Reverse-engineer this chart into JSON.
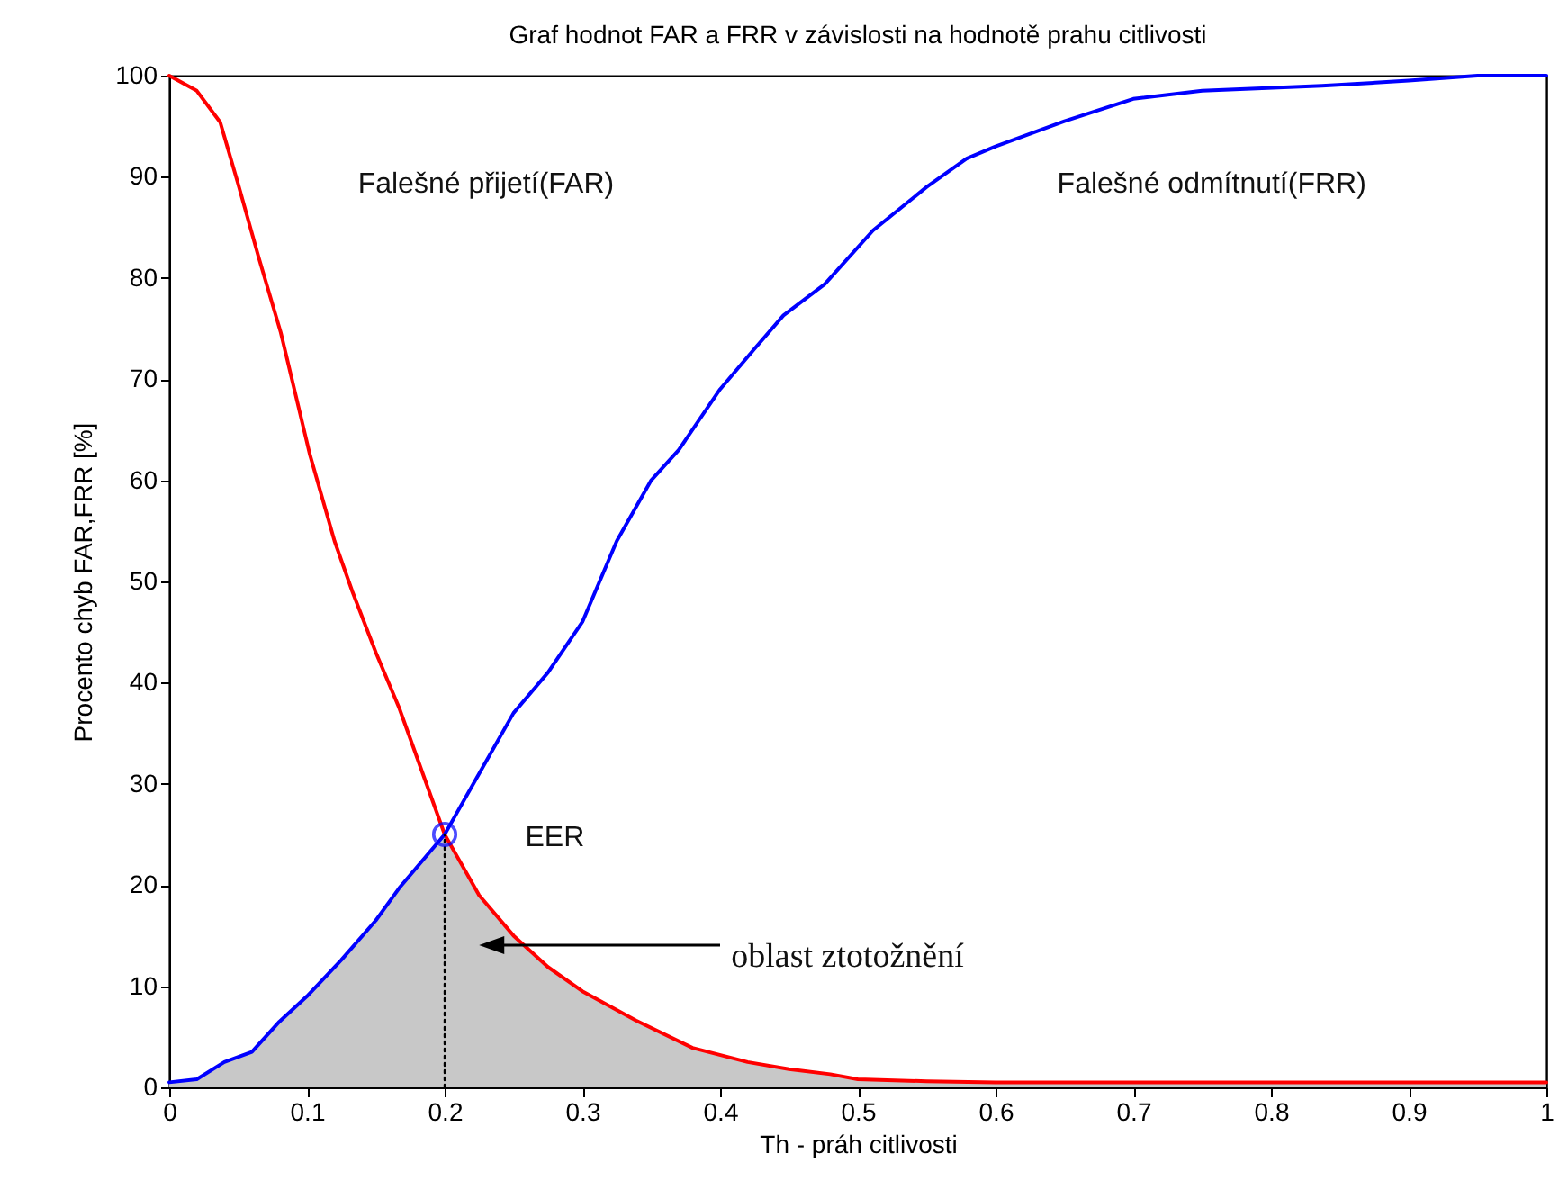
{
  "chart_data": {
    "type": "line",
    "title": "Graf hodnot FAR a FRR v závislosti na hodnotě prahu citlivosti",
    "xlabel": "Th - práh citlivosti",
    "ylabel": "Procento chyb FAR,FRR [%]",
    "xlim": [
      0,
      1
    ],
    "ylim": [
      0,
      100
    ],
    "xticks": [
      0,
      0.1,
      0.2,
      0.3,
      0.4,
      0.5,
      0.6,
      0.7,
      0.8,
      0.9,
      1
    ],
    "yticks": [
      0,
      10,
      20,
      30,
      40,
      50,
      60,
      70,
      80,
      90,
      100
    ],
    "grid": false,
    "series": [
      {
        "type": "area",
        "color": "#c8c8c8",
        "x": [
          0,
          0.02,
          0.04,
          0.06,
          0.08,
          0.1,
          0.125,
          0.15,
          0.167,
          0.2,
          0.225,
          0.25,
          0.275,
          0.3,
          0.339,
          0.38,
          0.42,
          0.45,
          0.48,
          0.5,
          0.55,
          0.6,
          1
        ],
        "values": [
          0.5,
          0.8,
          2.5,
          3.5,
          6.5,
          9,
          12.6,
          16.5,
          19.7,
          25,
          19,
          15,
          11.9,
          9.5,
          6.6,
          3.9,
          2.5,
          1.8,
          1.3,
          0.8,
          0.6,
          0.5,
          0.5
        ]
      },
      {
        "color": "#ff0000",
        "line_style": "solid",
        "x": [
          0,
          0.02,
          0.037,
          0.05,
          0.065,
          0.081,
          0.102,
          0.12,
          0.133,
          0.15,
          0.167,
          0.2,
          0.225,
          0.25,
          0.275,
          0.3,
          0.339,
          0.38,
          0.42,
          0.45,
          0.48,
          0.5,
          0.55,
          0.6,
          1
        ],
        "values": [
          100,
          98.5,
          95.4,
          89.3,
          82,
          74.6,
          62.6,
          54,
          49,
          43,
          37.5,
          25,
          19,
          15,
          11.9,
          9.5,
          6.6,
          3.9,
          2.5,
          1.8,
          1.3,
          0.8,
          0.6,
          0.5,
          0.5
        ]
      },
      {
        "color": "#0000ff",
        "line_style": "solid",
        "x": [
          0,
          0.02,
          0.04,
          0.06,
          0.08,
          0.1,
          0.125,
          0.15,
          0.167,
          0.2,
          0.225,
          0.25,
          0.275,
          0.3,
          0.325,
          0.35,
          0.37,
          0.4,
          0.425,
          0.446,
          0.476,
          0.511,
          0.55,
          0.579,
          0.6,
          0.65,
          0.7,
          0.75,
          0.837,
          0.9,
          0.95,
          1
        ],
        "values": [
          0.5,
          0.8,
          2.5,
          3.5,
          6.5,
          9,
          12.6,
          16.5,
          19.7,
          25,
          31,
          37,
          41,
          46,
          54,
          60,
          63,
          69,
          73,
          76.3,
          79.4,
          84.7,
          89,
          91.8,
          93,
          95.5,
          97.7,
          98.5,
          99,
          99.5,
          100,
          100
        ]
      },
      {
        "type": "line",
        "color": "#000000",
        "line_style": "dotted",
        "x": [
          0.2,
          0.2
        ],
        "values": [
          0,
          25
        ]
      },
      {
        "type": "scatter",
        "color": "#0000ff",
        "marker": "circle",
        "x": [
          0.2
        ],
        "values": [
          25
        ]
      }
    ],
    "annotations": [
      "Falešné přijetí(FAR)",
      "Falešné odmítnutí(FRR)",
      "EER",
      "oblast ztotožnění"
    ]
  }
}
